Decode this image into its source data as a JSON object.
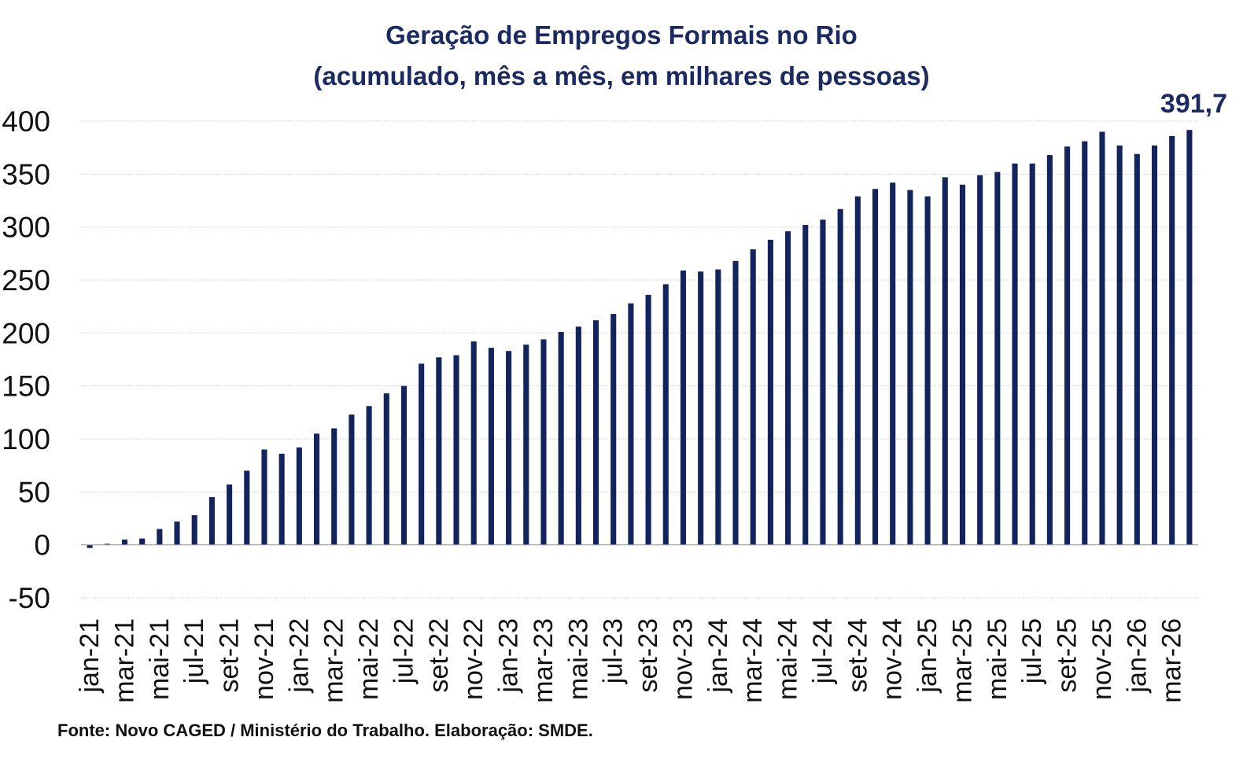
{
  "colors": {
    "bar": "#13235d",
    "title": "#1b2a63",
    "grid": "#c8c8c8",
    "axis": "#9a9a9a"
  },
  "chart_data": {
    "type": "bar",
    "title": "Geração de Empregos Formais no Rio",
    "subtitle": "(acumulado, mês a mês, em milhares de pessoas)",
    "ylim": [
      -50,
      400
    ],
    "yticks": [
      400,
      350,
      300,
      250,
      200,
      150,
      100,
      50,
      0,
      -50
    ],
    "grid": true,
    "categories": [
      "jan-21",
      "fev-21",
      "mar-21",
      "abr-21",
      "mai-21",
      "jun-21",
      "jul-21",
      "ago-21",
      "set-21",
      "out-21",
      "nov-21",
      "dez-21",
      "jan-22",
      "fev-22",
      "mar-22",
      "abr-22",
      "mai-22",
      "jun-22",
      "jul-22",
      "ago-22",
      "set-22",
      "out-22",
      "nov-22",
      "dez-22",
      "jan-23",
      "fev-23",
      "mar-23",
      "abr-23",
      "mai-23",
      "jun-23",
      "jul-23",
      "ago-23",
      "set-23",
      "out-23",
      "nov-23",
      "dez-23",
      "jan-24",
      "fev-24",
      "mar-24",
      "abr-24",
      "mai-24",
      "jun-24",
      "jul-24",
      "ago-24",
      "set-24",
      "out-24",
      "nov-24",
      "dez-24",
      "jan-25",
      "fev-25",
      "mar-25",
      "abr-25",
      "mai-25",
      "jun-25",
      "jul-25",
      "ago-25",
      "set-25",
      "out-25",
      "nov-25",
      "dez-25",
      "jan-26",
      "fev-26",
      "mar-26",
      "abr-26"
    ],
    "xtick_labels": [
      "jan-21",
      "mar-21",
      "mai-21",
      "jul-21",
      "set-21",
      "nov-21",
      "jan-22",
      "mar-22",
      "mai-22",
      "jul-22",
      "set-22",
      "nov-22",
      "jan-23",
      "mar-23",
      "mai-23",
      "jul-23",
      "set-23",
      "nov-23",
      "jan-24",
      "mar-24",
      "mai-24",
      "jul-24",
      "set-24",
      "nov-24",
      "jan-25",
      "mar-25",
      "mai-25",
      "jul-25",
      "set-25",
      "nov-25",
      "jan-26",
      "mar-26"
    ],
    "values": [
      -3,
      1,
      5,
      6,
      15,
      22,
      28,
      45,
      57,
      70,
      90,
      86,
      92,
      105,
      110,
      123,
      131,
      143,
      150,
      171,
      177,
      179,
      192,
      186,
      183,
      189,
      194,
      201,
      206,
      212,
      218,
      228,
      236,
      246,
      259,
      258,
      260,
      268,
      279,
      288,
      296,
      302,
      307,
      317,
      329,
      336,
      342,
      335,
      329,
      347,
      340,
      349,
      352,
      360,
      360,
      368,
      376,
      381,
      390,
      377,
      369,
      377,
      386,
      391.7
    ],
    "annotation": "391,7",
    "source": "Fonte: Novo CAGED / Ministério do Trabalho. Elaboração: SMDE."
  }
}
